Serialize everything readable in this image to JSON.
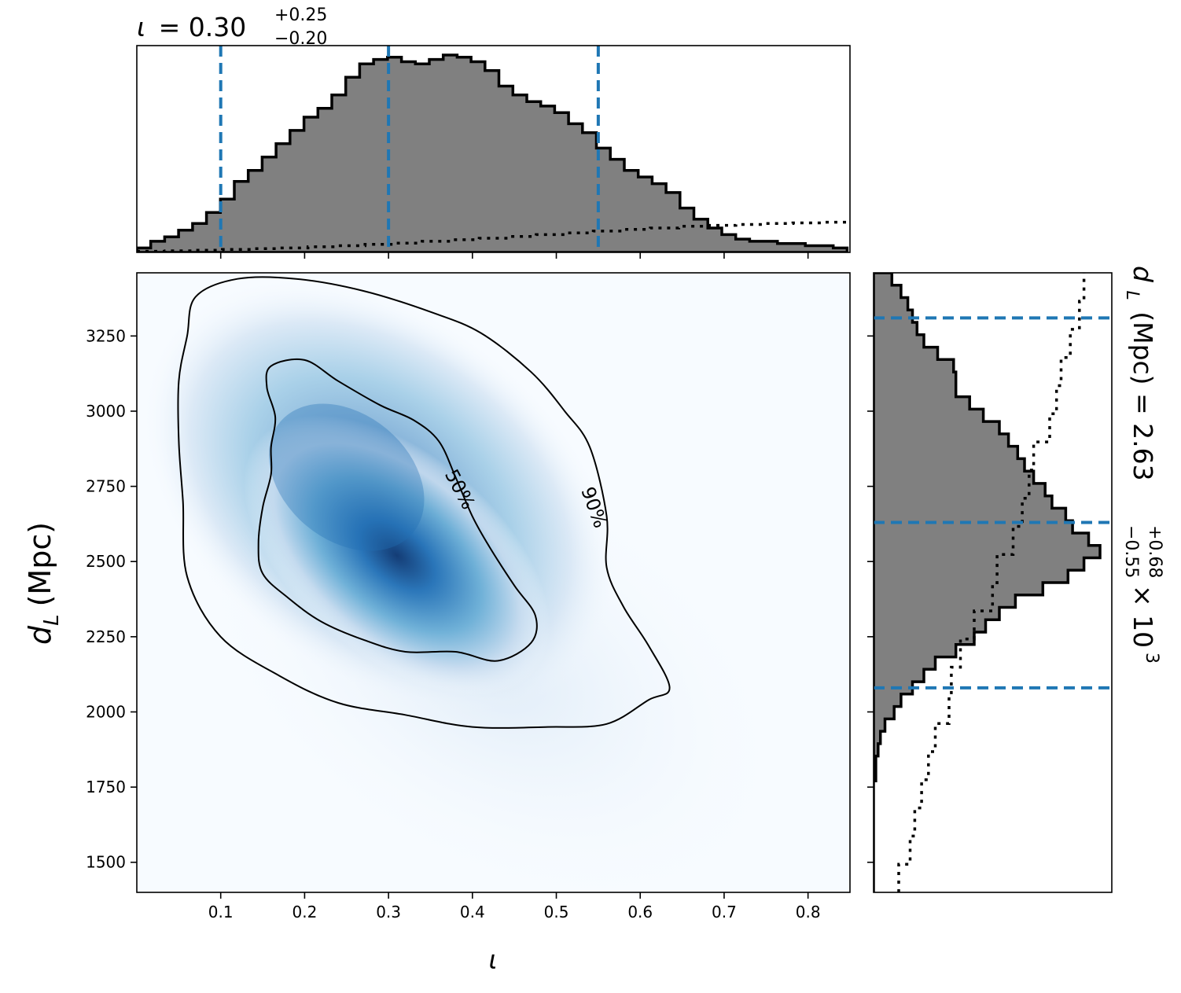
{
  "chart_data": [
    {
      "type": "heatmap",
      "title": "",
      "xlabel": "ι",
      "ylabel_symbol": "d",
      "ylabel_subscript": "L",
      "ylabel_unit": "(Mpc)",
      "xlim": [
        0.0,
        0.85
      ],
      "ylim": [
        1400,
        3460
      ],
      "x_ticks": [
        0.1,
        0.2,
        0.3,
        0.4,
        0.5,
        0.6,
        0.7,
        0.8
      ],
      "x_tick_labels": [
        "0.1",
        "0.2",
        "0.3",
        "0.4",
        "0.5",
        "0.6",
        "0.7",
        "0.8"
      ],
      "y_ticks": [
        1500,
        1750,
        2000,
        2250,
        2500,
        2750,
        3000,
        3250
      ],
      "y_tick_labels": [
        "1500",
        "1750",
        "2000",
        "2250",
        "2500",
        "2750",
        "3000",
        "3250"
      ],
      "colormap": "Blues",
      "density_peak": [
        0.31,
        2520
      ],
      "contour_labels": [
        "50%",
        "90%"
      ],
      "contours": [
        {
          "level": "50%",
          "points": [
            [
              0.16,
              2790
            ],
            [
              0.15,
              2680
            ],
            [
              0.145,
              2560
            ],
            [
              0.15,
              2460
            ],
            [
              0.18,
              2380
            ],
            [
              0.22,
              2300
            ],
            [
              0.27,
              2240
            ],
            [
              0.32,
              2200
            ],
            [
              0.38,
              2200
            ],
            [
              0.43,
              2170
            ],
            [
              0.47,
              2230
            ],
            [
              0.475,
              2320
            ],
            [
              0.45,
              2420
            ],
            [
              0.42,
              2550
            ],
            [
              0.4,
              2650
            ],
            [
              0.38,
              2780
            ],
            [
              0.36,
              2900
            ],
            [
              0.33,
              2970
            ],
            [
              0.29,
              3020
            ],
            [
              0.24,
              3100
            ],
            [
              0.2,
              3170
            ],
            [
              0.16,
              3150
            ],
            [
              0.155,
              3080
            ],
            [
              0.165,
              2980
            ],
            [
              0.16,
              2880
            ]
          ]
        },
        {
          "level": "90%",
          "points": [
            [
              0.07,
              3380
            ],
            [
              0.12,
              3440
            ],
            [
              0.19,
              3440
            ],
            [
              0.27,
              3400
            ],
            [
              0.35,
              3330
            ],
            [
              0.41,
              3260
            ],
            [
              0.47,
              3130
            ],
            [
              0.51,
              3000
            ],
            [
              0.54,
              2880
            ],
            [
              0.56,
              2650
            ],
            [
              0.56,
              2480
            ],
            [
              0.58,
              2350
            ],
            [
              0.61,
              2220
            ],
            [
              0.635,
              2080
            ],
            [
              0.61,
              2040
            ],
            [
              0.56,
              1960
            ],
            [
              0.49,
              1950
            ],
            [
              0.4,
              1950
            ],
            [
              0.32,
              1990
            ],
            [
              0.24,
              2030
            ],
            [
              0.17,
              2120
            ],
            [
              0.1,
              2250
            ],
            [
              0.06,
              2450
            ],
            [
              0.055,
              2700
            ],
            [
              0.05,
              2900
            ],
            [
              0.05,
              3100
            ],
            [
              0.06,
              3250
            ]
          ]
        }
      ]
    },
    {
      "type": "bar",
      "panel": "top-marginal",
      "title_symbol": "ι",
      "title_value": "= 0.30",
      "title_sup": "+0.25",
      "title_sub": "−0.20",
      "bin_start": 0.0,
      "bin_width": 0.0166,
      "values": [
        0.02,
        0.05,
        0.07,
        0.1,
        0.13,
        0.18,
        0.24,
        0.32,
        0.37,
        0.43,
        0.49,
        0.55,
        0.61,
        0.65,
        0.71,
        0.79,
        0.85,
        0.87,
        0.88,
        0.86,
        0.85,
        0.87,
        0.89,
        0.88,
        0.86,
        0.82,
        0.75,
        0.71,
        0.68,
        0.66,
        0.63,
        0.58,
        0.54,
        0.47,
        0.42,
        0.37,
        0.34,
        0.31,
        0.27,
        0.2,
        0.15,
        0.11,
        0.08,
        0.06,
        0.05,
        0.05,
        0.04,
        0.04,
        0.03,
        0.03,
        0.02
      ],
      "prior_values": [
        0.005,
        0.007,
        0.01,
        0.013,
        0.017,
        0.02,
        0.025,
        0.03,
        0.036,
        0.042,
        0.05,
        0.057,
        0.064,
        0.072,
        0.08,
        0.088,
        0.096,
        0.104,
        0.11,
        0.118,
        0.122,
        0.126,
        0.13,
        0.133,
        0.136
      ],
      "prior_bin_width": 0.034,
      "quantile_lines": [
        0.1,
        0.3,
        0.55
      ],
      "line_color": "#1f77b4",
      "fill_color": "#808080"
    },
    {
      "type": "bar",
      "panel": "right-marginal",
      "orientation": "horizontal",
      "title_symbol": "d",
      "title_subscript": "L",
      "title_text": "(Mpc) = 2.63",
      "title_sup": "+0.68",
      "title_sub": "−0.55",
      "title_suffix": "× 10",
      "title_exp": "3",
      "bin_start": 1400,
      "bin_width": 41.2,
      "values": [
        0.0,
        0.0,
        0.0,
        0.0,
        0.0,
        0.0,
        0.0,
        0.0,
        0.0,
        0.01,
        0.01,
        0.02,
        0.03,
        0.05,
        0.09,
        0.12,
        0.17,
        0.22,
        0.27,
        0.36,
        0.44,
        0.49,
        0.55,
        0.62,
        0.74,
        0.85,
        0.92,
        0.99,
        0.94,
        0.87,
        0.84,
        0.78,
        0.75,
        0.7,
        0.66,
        0.63,
        0.59,
        0.55,
        0.48,
        0.42,
        0.36,
        0.36,
        0.35,
        0.28,
        0.22,
        0.19,
        0.17,
        0.15,
        0.12,
        0.08
      ],
      "prior_values": [
        0.11,
        0.16,
        0.18,
        0.21,
        0.24,
        0.27,
        0.33,
        0.34,
        0.38,
        0.44,
        0.52,
        0.54,
        0.61,
        0.65,
        0.68,
        0.7,
        0.77,
        0.8,
        0.82,
        0.86,
        0.9,
        0.92
      ],
      "prior_bin_width": 93.6,
      "quantile_lines": [
        2080,
        2630,
        3310
      ],
      "line_color": "#1f77b4",
      "fill_color": "#808080"
    }
  ]
}
